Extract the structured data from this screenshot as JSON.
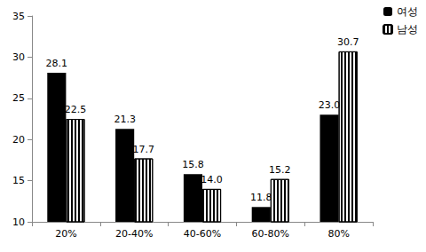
{
  "chart_data": {
    "type": "bar",
    "categories": [
      "20%",
      "20-40%",
      "40-60%",
      "60-80%",
      "80%"
    ],
    "series": [
      {
        "name": "여성",
        "color": "#000000",
        "values": [
          28.1,
          21.3,
          15.8,
          11.8,
          23.0
        ],
        "value_labels": [
          "28.1",
          "21.3",
          "15.8",
          "11.8",
          "23.0"
        ]
      },
      {
        "name": "남성",
        "color": "#ffffff",
        "values": [
          22.5,
          17.7,
          14.0,
          15.2,
          30.7
        ],
        "value_labels": [
          "22.5",
          "17.7",
          "14.0",
          "15.2",
          "30.7"
        ]
      }
    ],
    "ylim": [
      10,
      35
    ],
    "yticks": [
      10,
      15,
      20,
      25,
      30,
      35
    ],
    "grid": false,
    "legend": "top-right",
    "data_labels": true
  }
}
